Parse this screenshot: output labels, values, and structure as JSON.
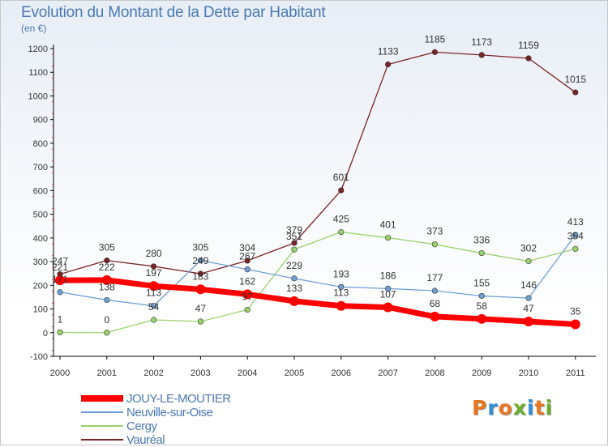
{
  "title": "Evolution du Montant de la Dette par Habitant",
  "subtitle": "(en €)",
  "brand": {
    "text": "Proxiti",
    "colors": [
      "#e87722",
      "#2f8fd8",
      "#e87722",
      "#6cae2f",
      "#2f8fd8",
      "#e87722",
      "#6cae2f"
    ]
  },
  "chart_data": {
    "type": "line",
    "x": [
      "2000",
      "2001",
      "2002",
      "2003",
      "2004",
      "2005",
      "2006",
      "2007",
      "2008",
      "2009",
      "2010",
      "2011"
    ],
    "ylim": [
      -100,
      1200
    ],
    "yticks": [
      -100,
      0,
      100,
      200,
      300,
      400,
      500,
      600,
      700,
      800,
      900,
      1000,
      1100,
      1200
    ],
    "grid": false,
    "legend_position": "bottom-left",
    "series": [
      {
        "name": "JOUY-LE-MOUTIER",
        "color": "#ff0000",
        "values": [
          221,
          222,
          197,
          183,
          162,
          133,
          113,
          107,
          68,
          58,
          47,
          35
        ]
      },
      {
        "name": "Neuville-sur-Oise",
        "color": "#6ca0d4",
        "values": [
          171,
          138,
          113,
          305,
          267,
          229,
          193,
          186,
          177,
          155,
          146,
          413
        ]
      },
      {
        "name": "Cergy",
        "color": "#99d36b",
        "values": [
          1,
          0,
          54,
          47,
          97,
          351,
          425,
          401,
          373,
          336,
          302,
          354
        ]
      },
      {
        "name": "Vauréal",
        "color": "#7a2424",
        "values": [
          247,
          305,
          280,
          249,
          304,
          379,
          601,
          1133,
          1185,
          1173,
          1159,
          1015
        ]
      }
    ]
  }
}
